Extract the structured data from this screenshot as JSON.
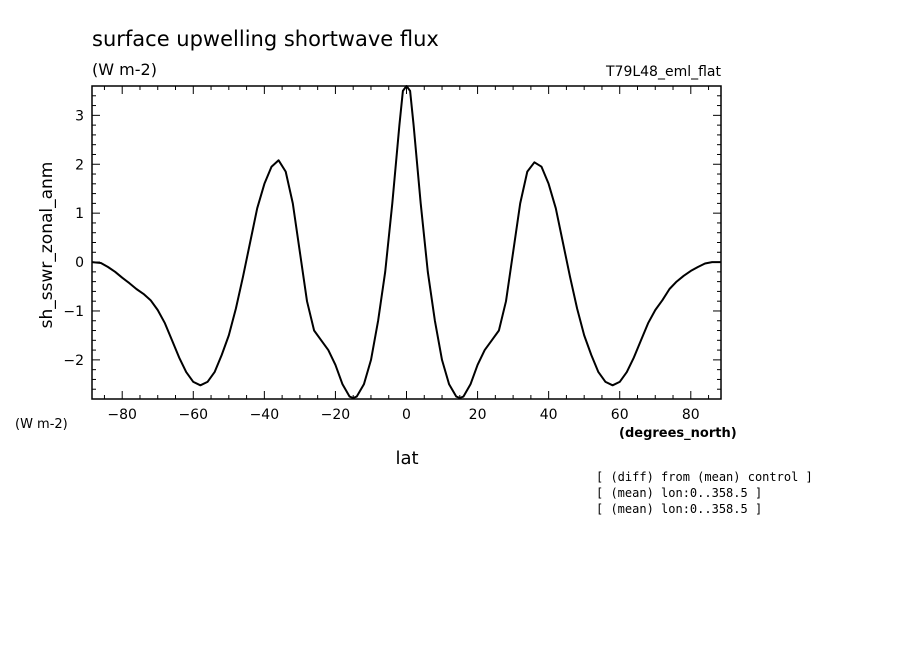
{
  "chart_data": {
    "type": "line",
    "title": "surface upwelling shortwave flux",
    "units": "(W m-2)",
    "run_label": "T79L48_eml_flat",
    "xlabel": "lat",
    "xunits": "(degrees_north)",
    "ylabel": "sh_sswr_zonal_anm",
    "yunits": "(W m-2)",
    "xlim": [
      -88.5,
      88.5
    ],
    "ylim": [
      -2.8,
      3.6
    ],
    "xticks": [
      -80,
      -60,
      -40,
      -20,
      0,
      20,
      40,
      60,
      80
    ],
    "yticks": [
      -2,
      -1,
      0,
      1,
      2,
      3
    ],
    "grid": false,
    "series": [
      {
        "x": [
          -88.5,
          -86,
          -84,
          -82,
          -80,
          -78,
          -76,
          -74,
          -72,
          -70,
          -68,
          -66,
          -64,
          -62,
          -60,
          -58,
          -56,
          -54,
          -52,
          -50,
          -48,
          -46,
          -44,
          -42,
          -40,
          -38,
          -36,
          -34,
          -32,
          -30,
          -28,
          -26,
          -24,
          -22,
          -20,
          -18,
          -16,
          -15,
          -14,
          -12,
          -10,
          -8,
          -6,
          -4,
          -2,
          -1,
          0,
          1,
          2,
          4,
          6,
          8,
          10,
          12,
          14,
          15,
          16,
          18,
          20,
          22,
          24,
          26,
          28,
          30,
          32,
          34,
          36,
          38,
          40,
          42,
          44,
          46,
          48,
          50,
          52,
          54,
          56,
          58,
          60,
          62,
          64,
          66,
          68,
          70,
          72,
          74,
          76,
          78,
          80,
          82,
          84,
          86,
          88.5
        ],
        "y": [
          0.0,
          -0.02,
          -0.1,
          -0.2,
          -0.32,
          -0.43,
          -0.55,
          -0.65,
          -0.78,
          -0.98,
          -1.25,
          -1.6,
          -1.95,
          -2.25,
          -2.45,
          -2.52,
          -2.45,
          -2.25,
          -1.9,
          -1.5,
          -0.95,
          -0.3,
          0.4,
          1.1,
          1.6,
          1.95,
          2.08,
          1.85,
          1.2,
          0.2,
          -0.8,
          -1.4,
          -1.6,
          -1.8,
          -2.1,
          -2.5,
          -2.75,
          -2.78,
          -2.75,
          -2.5,
          -2.0,
          -1.2,
          -0.2,
          1.2,
          2.8,
          3.5,
          3.6,
          3.5,
          2.8,
          1.2,
          -0.2,
          -1.2,
          -2.0,
          -2.5,
          -2.75,
          -2.78,
          -2.75,
          -2.5,
          -2.1,
          -1.8,
          -1.6,
          -1.4,
          -0.8,
          0.2,
          1.2,
          1.85,
          2.04,
          1.95,
          1.6,
          1.1,
          0.4,
          -0.3,
          -0.95,
          -1.5,
          -1.9,
          -2.25,
          -2.45,
          -2.52,
          -2.45,
          -2.25,
          -1.95,
          -1.6,
          -1.25,
          -0.98,
          -0.78,
          -0.55,
          -0.4,
          -0.28,
          -0.18,
          -0.1,
          -0.03,
          0.0,
          0.0
        ]
      }
    ]
  },
  "notes": [
    "[ (diff) from (mean) control ]",
    "[ (mean) lon:0..358.5 ]",
    "[ (mean) lon:0..358.5 ]"
  ]
}
